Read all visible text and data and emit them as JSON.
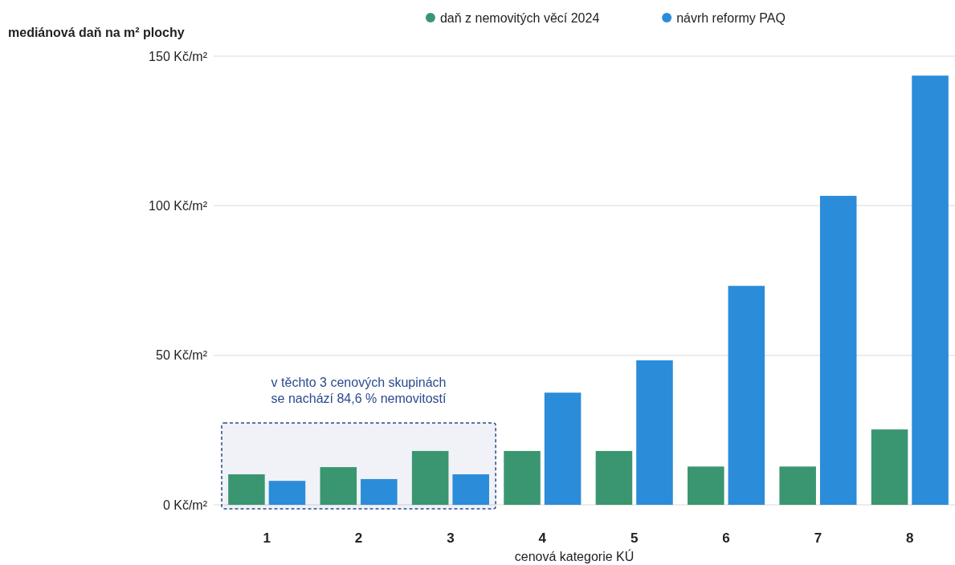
{
  "chart_data": {
    "type": "bar",
    "ylabel": "mediánová daň na m² plochy",
    "xlabel": "cenová kategorie KÚ",
    "categories": [
      "1",
      "2",
      "3",
      "4",
      "5",
      "6",
      "7",
      "8"
    ],
    "series": [
      {
        "name": "daň z nemovitých věcí 2024",
        "color": "#3a9670",
        "values": [
          10.2,
          12.6,
          18,
          18,
          18,
          12.8,
          12.8,
          25.2
        ]
      },
      {
        "name": "návrh reformy PAQ",
        "color": "#2b8cd9",
        "values": [
          8,
          8.6,
          10.2,
          37.5,
          48.3,
          73.2,
          103.3,
          143.5
        ]
      }
    ],
    "ylim": [
      0,
      150
    ],
    "yticks": [
      {
        "value": 0,
        "label": "0 Kč/m²"
      },
      {
        "value": 50,
        "label": "50 Kč/m²"
      },
      {
        "value": 100,
        "label": "100 Kč/m²"
      },
      {
        "value": 150,
        "label": "150 Kč/m²"
      }
    ],
    "bands": [
      {
        "axis": "x",
        "from": "1",
        "to": "3",
        "label": "v těchto 3 cenových skupinách\nse nachází 84,6 % nemovitostí",
        "color": "#2a4a8c"
      }
    ],
    "grid": "y",
    "legend": "top"
  }
}
